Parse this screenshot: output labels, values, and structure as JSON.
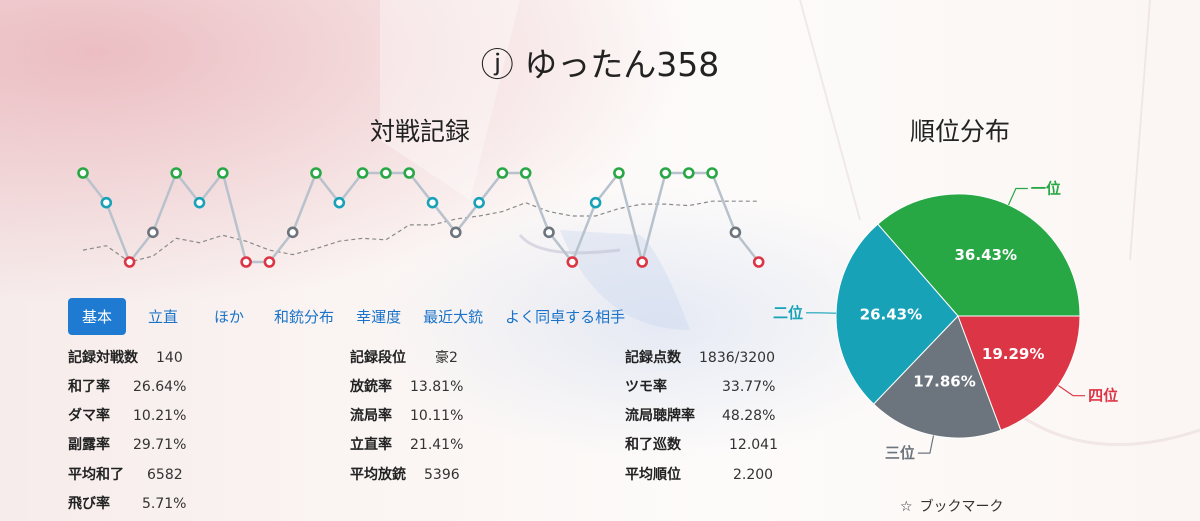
{
  "player": {
    "name": "ⓙ ゆったん358"
  },
  "record_section": {
    "title": "対戦記録"
  },
  "distribution_section": {
    "title": "順位分布"
  },
  "tabs": [
    {
      "label": "基本",
      "active": true
    },
    {
      "label": "立直",
      "active": false
    },
    {
      "label": "ほか",
      "active": false
    },
    {
      "label": "和銃分布",
      "active": false
    },
    {
      "label": "幸運度",
      "active": false
    },
    {
      "label": "最近大銃",
      "active": false
    },
    {
      "label": "よく同卓する相手",
      "active": false
    }
  ],
  "stats": {
    "col1": [
      {
        "label": "記録対戦数",
        "value": "140"
      },
      {
        "label": "和了率",
        "value": "26.64%"
      },
      {
        "label": "ダマ率",
        "value": "10.21%"
      },
      {
        "label": "副露率",
        "value": "29.71%"
      },
      {
        "label": "平均和了",
        "value": "6582"
      },
      {
        "label": "飛び率",
        "value": "5.71%"
      }
    ],
    "col2": [
      {
        "label": "記録段位",
        "value": "豪2"
      },
      {
        "label": "放銃率",
        "value": "13.81%"
      },
      {
        "label": "流局率",
        "value": "10.11%"
      },
      {
        "label": "立直率",
        "value": "21.41%"
      },
      {
        "label": "平均放銃",
        "value": "5396"
      }
    ],
    "col3": [
      {
        "label": "記録点数",
        "value": "1836/3200"
      },
      {
        "label": "ツモ率",
        "value": "33.77%"
      },
      {
        "label": "流局聴牌率",
        "value": "48.28%"
      },
      {
        "label": "和了巡数",
        "value": "12.041"
      },
      {
        "label": "平均順位",
        "value": "2.200"
      }
    ]
  },
  "bookmark": {
    "label": "ブックマーク",
    "icon": "star-outline-icon"
  },
  "chart_data": [
    {
      "type": "line",
      "title": "対戦記録",
      "x": [
        1,
        2,
        3,
        4,
        5,
        6,
        7,
        8,
        9,
        10,
        11,
        12,
        13,
        14,
        15,
        16,
        17,
        18,
        19,
        20,
        21,
        22,
        23,
        24,
        25,
        26,
        27,
        28,
        29,
        30
      ],
      "series": [
        {
          "values": [
            1,
            2,
            4,
            3,
            1,
            2,
            1,
            4,
            4,
            3,
            1,
            2,
            1,
            1,
            1,
            2,
            3,
            2,
            1,
            1,
            3,
            4,
            2,
            1,
            4,
            1,
            1,
            1,
            3,
            4
          ]
        },
        {
          "values": [
            3.6,
            3.45,
            4,
            3.8,
            3.2,
            3.35,
            3.1,
            3.3,
            3.6,
            3.75,
            3.55,
            3.3,
            3.2,
            3.25,
            2.75,
            2.75,
            2.55,
            2.45,
            2.3,
            2.0,
            2.3,
            2.45,
            2.45,
            2.2,
            2.05,
            2.05,
            2.1,
            1.95,
            1.95,
            1.95
          ]
        }
      ],
      "ylim": [
        1,
        4
      ],
      "colors": {
        "1": "#28a745",
        "2": "#17a2b8",
        "3": "#6c757d",
        "4": "#dc3545",
        "line": "#b8c2cc",
        "trend": "#8a8a8a"
      }
    },
    {
      "type": "pie",
      "title": "順位分布",
      "categories": [
        "一位",
        "二位",
        "三位",
        "四位"
      ],
      "values": [
        36.43,
        26.43,
        17.86,
        19.29
      ],
      "data_labels": [
        "36.43%",
        "26.43%",
        "17.86%",
        "19.29%"
      ],
      "colors": [
        "#28a745",
        "#17a2b8",
        "#6c757d",
        "#dc3545"
      ]
    }
  ]
}
